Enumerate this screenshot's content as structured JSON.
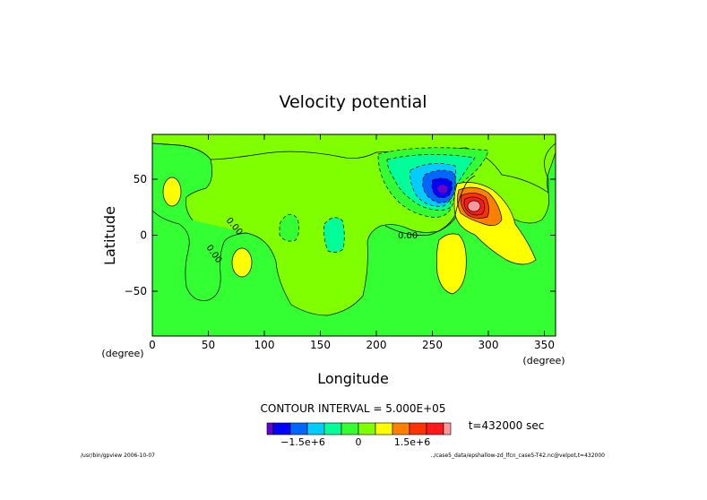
{
  "colors": {
    "background_field": "#80ff00",
    "level_m3": "#6600cc",
    "level_m2_5": "#0000ff",
    "level_m2": "#0066ff",
    "level_m1_5": "#00ccff",
    "level_m1": "#00ff99",
    "level_m0_5": "#33ff33",
    "level_0": "#80ff00",
    "level_p0_5": "#ffff00",
    "level_p1": "#ff8000",
    "level_p1_5": "#ff3300",
    "level_p2": "#ff1a1a",
    "level_p2_5": "#ff9999"
  },
  "chart_data": {
    "type": "contour",
    "title": "Velocity potential",
    "xlabel": "Longitude",
    "ylabel": "Latitude",
    "xlim": [
      0,
      360
    ],
    "ylim": [
      -90,
      90
    ],
    "x_ticks": [
      0,
      50,
      100,
      150,
      200,
      250,
      300,
      350
    ],
    "y_ticks": [
      50,
      0,
      -50
    ],
    "x_unit": "(degree)",
    "y_unit": "(degree)",
    "contour_labels": [
      "0.00",
      "0.00",
      "0.00"
    ],
    "contour_interval_text": "CONTOUR INTERVAL = 5.000E+05",
    "colorbar": {
      "levels": [
        -3000000.0,
        -2500000.0,
        -2000000.0,
        -1500000.0,
        -1000000.0,
        -500000.0,
        0,
        500000.0,
        1000000.0,
        1500000.0,
        2000000.0,
        2500000.0
      ],
      "tick_labels": [
        "−1.5e+6",
        "0",
        "1.5e+6"
      ]
    },
    "features": [
      {
        "kind": "min",
        "lon": 258,
        "lat": 40,
        "value": -2900000.0
      },
      {
        "kind": "max",
        "lon": 286,
        "lat": 25,
        "value": 2600000.0
      },
      {
        "kind": "positive_area",
        "lon": 18,
        "lat": 38
      },
      {
        "kind": "positive_area",
        "lon": 80,
        "lat": -25
      },
      {
        "kind": "positive_area",
        "lon": 265,
        "lat": -30
      },
      {
        "kind": "negative_area",
        "lon": 160,
        "lat": 0
      }
    ],
    "time_label": "t=432000 sec"
  },
  "footer": {
    "left": "/usr/bin/gpview  2006-10-07",
    "right": "../case5_data/epshallow-zd_lfcn_case5-T42.nc@velpot,t=432000"
  }
}
